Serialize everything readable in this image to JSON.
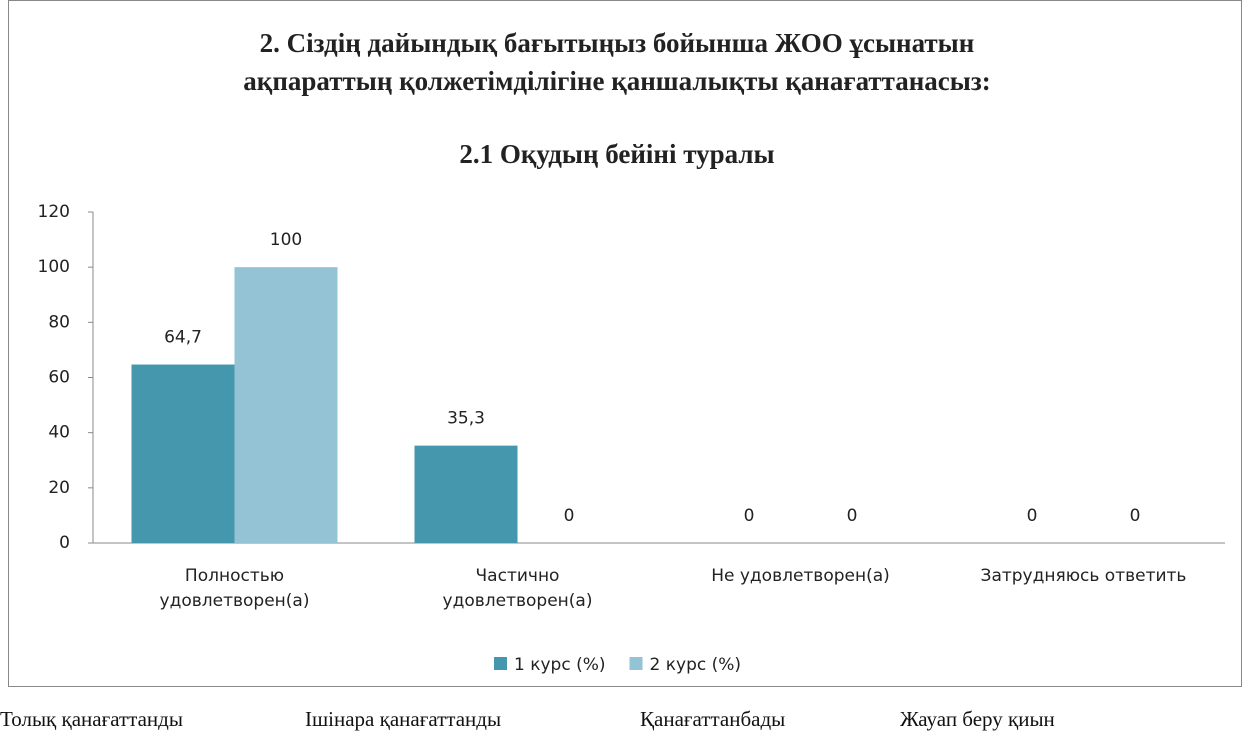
{
  "chart_data": {
    "type": "bar",
    "title": [
      "2. Сіздің дайындық бағытыңыз бойынша ЖОО ұсынатын",
      "ақпараттың  қолжетімділігіне қаншалықты қанағаттанасыз:"
    ],
    "subtitle": "2.1 Оқудың бейіні туралы",
    "categories": [
      "Полностью удовлетворен(а)",
      "Частично удовлетворен(а)",
      "Не удовлетворен(а)",
      "Затрудняюсь ответить"
    ],
    "series": [
      {
        "name": "1 курс (%)",
        "color": "#4597ad",
        "values": [
          64.7,
          35.3,
          0,
          0
        ],
        "value_labels": [
          "64,7",
          "35,3",
          "0",
          "0"
        ]
      },
      {
        "name": "2 курс (%)",
        "color": "#93c3d4",
        "values": [
          100,
          0,
          0,
          0
        ],
        "value_labels": [
          "100",
          "0",
          "0",
          "0"
        ]
      }
    ],
    "ylim": [
      0,
      120
    ],
    "yticks": [
      0,
      20,
      40,
      60,
      80,
      100,
      120
    ],
    "grid": false,
    "legend": "bottom"
  },
  "footer_labels": [
    "Толық қанағаттанды",
    "Ішінара қанағаттанды",
    "Қанағаттанбады",
    "Жауап беру қиын"
  ]
}
